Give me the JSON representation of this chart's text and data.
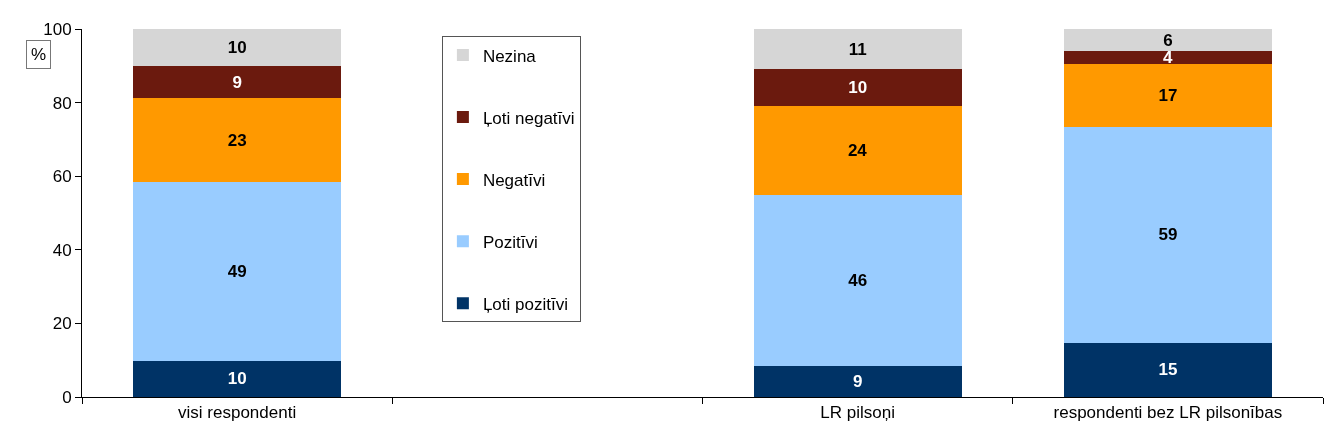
{
  "chart_data": {
    "type": "bar",
    "stacked": true,
    "ylabel": "%",
    "categories": [
      "visi respondenti",
      null,
      "LR pilsoņi",
      "respondenti bez LR pilsonības"
    ],
    "series": [
      {
        "name": "Ļoti pozitīvi",
        "color": "#003366",
        "values": [
          9.8,
          null,
          8.5,
          14.7
        ],
        "value_labels": [
          "10",
          null,
          "9",
          "15"
        ]
      },
      {
        "name": "Pozitīvi",
        "color": "#99ccff",
        "values": [
          48.6,
          null,
          46.4,
          58.7
        ],
        "value_labels": [
          "49",
          null,
          "46",
          "59"
        ]
      },
      {
        "name": "Negatīvi",
        "color": "#ff9900",
        "values": [
          22.8,
          null,
          24.1,
          17.1
        ],
        "value_labels": [
          "23",
          null,
          "24",
          "17"
        ]
      },
      {
        "name": "Ļoti negatīvi",
        "color": "#6b1a0e",
        "values": [
          8.7,
          null,
          10.0,
          3.5
        ],
        "value_labels": [
          "9",
          null,
          "10",
          "4"
        ]
      },
      {
        "name": "Nezina",
        "color": "#d6d6d6",
        "values": [
          10.1,
          null,
          11.0,
          6.0
        ],
        "value_labels": [
          "10",
          null,
          "11",
          "6"
        ]
      }
    ],
    "ylim": [
      0,
      100
    ],
    "yticks": [
      0,
      20,
      40,
      60,
      80,
      100
    ],
    "grid": false,
    "legend": "top"
  }
}
